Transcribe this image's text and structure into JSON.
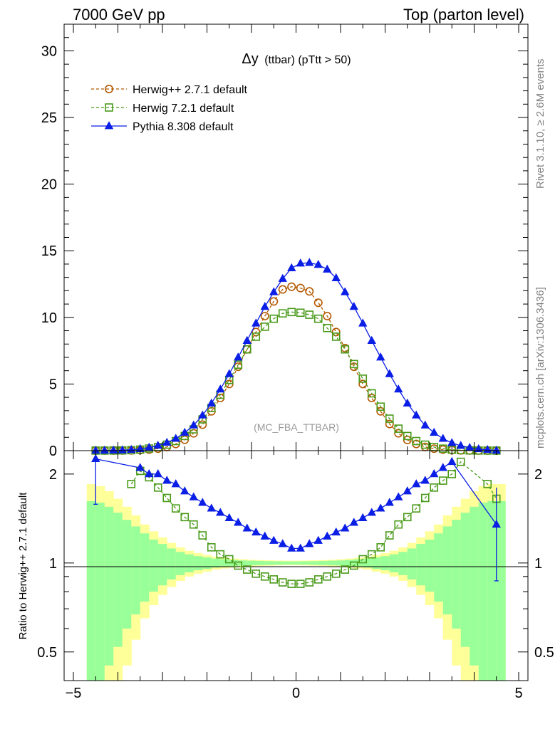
{
  "header": {
    "left": "7000 GeV pp",
    "right": "Top (parton level)"
  },
  "side": {
    "rivet": "Rivet 3.1.10, ≥ 2.6M events",
    "mcplots": "mcplots.cern.ch [arXiv:1306.3436]"
  },
  "colors": {
    "herwigpp": "#b35900",
    "herwig7": "#4a9a1a",
    "pythia": "#0a1ee6",
    "band_inner": "#99ff99",
    "band_outer": "#ffff99"
  },
  "chart_data": [
    {
      "type": "line",
      "title": "Δy (ttbar) (pTtt > 50)",
      "title_main": "Δy",
      "title_sub": "(ttbar) (pTtt > 50)",
      "watermark": "(MC_FBA_TTBAR)",
      "xlim": [
        -5,
        5
      ],
      "ylim": [
        0,
        32
      ],
      "yticks": [
        0,
        5,
        10,
        15,
        20,
        25,
        30
      ],
      "ytick_labels": [
        "0",
        "5",
        "10",
        "15",
        "20",
        "25",
        "30"
      ],
      "legend": [
        "Herwig++ 2.7.1 default",
        "Herwig 7.2.1 default",
        "Pythia 8.308 default"
      ],
      "legend_position": "top-left",
      "x": [
        -4.5,
        -4.3,
        -4.1,
        -3.9,
        -3.7,
        -3.5,
        -3.3,
        -3.1,
        -2.9,
        -2.7,
        -2.5,
        -2.3,
        -2.1,
        -1.9,
        -1.7,
        -1.5,
        -1.3,
        -1.1,
        -0.9,
        -0.7,
        -0.5,
        -0.3,
        -0.1,
        0.1,
        0.3,
        0.5,
        0.7,
        0.9,
        1.1,
        1.3,
        1.5,
        1.7,
        1.9,
        2.1,
        2.3,
        2.5,
        2.7,
        2.9,
        3.1,
        3.3,
        3.5,
        3.7,
        3.9,
        4.1,
        4.3,
        4.5
      ],
      "series": [
        {
          "name": "Herwig++ 2.7.1 default",
          "marker": "circle",
          "values": [
            0.002,
            0.004,
            0.007,
            0.01,
            0.02,
            0.04,
            0.08,
            0.15,
            0.28,
            0.5,
            0.82,
            1.3,
            1.95,
            2.95,
            3.95,
            5.0,
            6.3,
            7.6,
            8.9,
            10.1,
            11.2,
            12.1,
            12.3,
            12.2,
            11.95,
            11.1,
            10.1,
            8.9,
            7.7,
            6.3,
            5.0,
            3.95,
            2.95,
            2.0,
            1.3,
            0.8,
            0.5,
            0.28,
            0.15,
            0.08,
            0.04,
            0.02,
            0.01,
            0.007,
            0.004,
            0.002
          ]
        },
        {
          "name": "Herwig 7.2.1 default",
          "marker": "square",
          "values": [
            0.004,
            0.007,
            0.01,
            0.018,
            0.035,
            0.08,
            0.16,
            0.27,
            0.45,
            0.72,
            1.1,
            1.6,
            2.35,
            3.2,
            4.2,
            5.3,
            6.45,
            7.6,
            8.55,
            9.3,
            9.9,
            10.3,
            10.4,
            10.35,
            10.2,
            9.9,
            9.2,
            8.55,
            7.6,
            6.5,
            5.4,
            4.3,
            3.3,
            2.4,
            1.65,
            1.1,
            0.72,
            0.45,
            0.27,
            0.15,
            0.07,
            0.035,
            0.018,
            0.01,
            0.006,
            0.004
          ]
        },
        {
          "name": "Pythia 8.308 default",
          "marker": "triangle",
          "values": [
            0.005,
            0.01,
            0.02,
            0.035,
            0.07,
            0.13,
            0.23,
            0.38,
            0.6,
            0.9,
            1.35,
            1.9,
            2.65,
            3.55,
            4.6,
            5.75,
            7.0,
            8.25,
            9.55,
            10.8,
            11.9,
            12.9,
            13.7,
            14.05,
            14.1,
            13.95,
            13.6,
            12.95,
            11.9,
            10.8,
            9.55,
            8.25,
            7.0,
            5.75,
            4.6,
            3.55,
            2.65,
            1.9,
            1.35,
            0.9,
            0.58,
            0.37,
            0.22,
            0.12,
            0.06,
            0.01
          ]
        }
      ]
    },
    {
      "type": "line",
      "ylabel": "Ratio to Herwig++ 2.7.1 default",
      "xlim": [
        -5,
        5
      ],
      "ylim": [
        0.4,
        2.4
      ],
      "yscale": "log",
      "xticks": [
        -5,
        0,
        5
      ],
      "xtick_labels": [
        "−5",
        "0",
        "5"
      ],
      "yticks": [
        0.5,
        1,
        2
      ],
      "ytick_labels": [
        "0.5",
        "1",
        "2"
      ],
      "reference": 1,
      "x": [
        -4.5,
        -4.3,
        -4.1,
        -3.9,
        -3.7,
        -3.5,
        -3.3,
        -3.1,
        -2.9,
        -2.7,
        -2.5,
        -2.3,
        -2.1,
        -1.9,
        -1.7,
        -1.5,
        -1.3,
        -1.1,
        -0.9,
        -0.7,
        -0.5,
        -0.3,
        -0.1,
        0.1,
        0.3,
        0.5,
        0.7,
        0.9,
        1.1,
        1.3,
        1.5,
        1.7,
        1.9,
        2.1,
        2.3,
        2.5,
        2.7,
        2.9,
        3.1,
        3.3,
        3.5,
        3.7,
        3.9,
        4.1,
        4.3,
        4.5
      ],
      "band_bins": [
        -4.7,
        -4.5,
        -4.3,
        -4.1,
        -3.9,
        -3.7,
        -3.5,
        -3.3,
        -3.1,
        -2.9,
        -2.7,
        -2.5,
        -2.3,
        -2.1,
        -1.9,
        -1.7,
        -1.5,
        -1.3,
        -1.1,
        -0.9,
        -0.7,
        -0.5,
        -0.3,
        -0.1,
        0.1,
        0.3,
        0.5,
        0.7,
        0.9,
        1.1,
        1.3,
        1.5,
        1.7,
        1.9,
        2.1,
        2.3,
        2.5,
        2.7,
        2.9,
        3.1,
        3.3,
        3.5,
        3.7,
        3.9,
        4.1,
        4.3,
        4.5,
        4.7
      ],
      "band_inner": [
        0.62,
        0.6,
        0.55,
        0.48,
        0.4,
        0.33,
        0.26,
        0.2,
        0.16,
        0.12,
        0.09,
        0.07,
        0.055,
        0.045,
        0.035,
        0.03,
        0.025,
        0.02,
        0.018,
        0.016,
        0.014,
        0.013,
        0.012,
        0.012,
        0.013,
        0.014,
        0.016,
        0.018,
        0.02,
        0.025,
        0.03,
        0.035,
        0.045,
        0.055,
        0.07,
        0.09,
        0.12,
        0.16,
        0.2,
        0.26,
        0.33,
        0.4,
        0.48,
        0.55,
        0.6,
        0.62,
        0.62
      ],
      "band_outer": [
        0.85,
        0.82,
        0.75,
        0.65,
        0.55,
        0.45,
        0.35,
        0.28,
        0.22,
        0.17,
        0.13,
        0.1,
        0.08,
        0.065,
        0.05,
        0.042,
        0.035,
        0.03,
        0.026,
        0.023,
        0.021,
        0.019,
        0.018,
        0.018,
        0.019,
        0.021,
        0.023,
        0.026,
        0.03,
        0.035,
        0.042,
        0.05,
        0.065,
        0.08,
        0.1,
        0.13,
        0.17,
        0.22,
        0.28,
        0.35,
        0.45,
        0.55,
        0.65,
        0.75,
        0.82,
        0.85,
        0.85
      ],
      "series": [
        {
          "name": "Herwig 7.2.1 default",
          "marker": "square",
          "values": [
            null,
            null,
            null,
            null,
            1.85,
            2.05,
            1.95,
            1.8,
            1.66,
            1.53,
            1.43,
            1.35,
            1.24,
            1.13,
            1.07,
            1.03,
            0.98,
            0.95,
            0.92,
            0.9,
            0.88,
            0.86,
            0.85,
            0.85,
            0.86,
            0.88,
            0.9,
            0.92,
            0.95,
            0.98,
            1.03,
            1.07,
            1.13,
            1.24,
            1.35,
            1.43,
            1.53,
            1.66,
            1.8,
            1.9,
            2.0,
            2.2,
            null,
            null,
            1.85,
            1.65
          ]
        },
        {
          "name": "Pythia 8.308 default",
          "marker": "triangle",
          "values": [
            2.25,
            null,
            null,
            null,
            null,
            2.1,
            2.0,
            2.0,
            1.9,
            1.85,
            1.75,
            1.67,
            1.6,
            1.53,
            1.48,
            1.42,
            1.37,
            1.31,
            1.27,
            1.23,
            1.19,
            1.16,
            1.12,
            1.12,
            1.16,
            1.19,
            1.23,
            1.27,
            1.31,
            1.37,
            1.42,
            1.48,
            1.53,
            1.6,
            1.67,
            1.75,
            1.85,
            1.9,
            2.0,
            2.1,
            2.2,
            null,
            null,
            null,
            null,
            1.35
          ]
        }
      ],
      "error_bars": [
        {
          "series": "Pythia 8.308 default",
          "x": -4.5,
          "low": 1.58,
          "high": 2.4
        },
        {
          "series": "Pythia 8.308 default",
          "x": 4.5,
          "low": 0.87,
          "high": 1.8
        }
      ]
    }
  ]
}
